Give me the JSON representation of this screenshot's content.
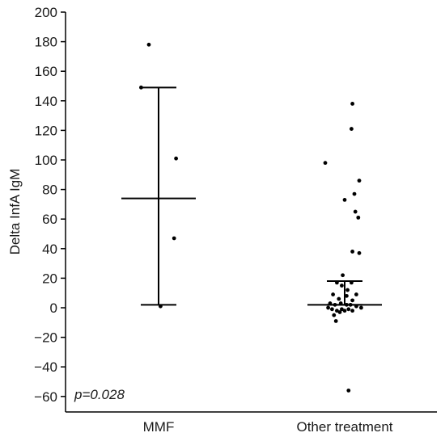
{
  "chart_data": {
    "type": "scatter",
    "ylabel": "Delta InfA IgM",
    "ylim": [
      -70,
      200
    ],
    "yticks": [
      200,
      180,
      160,
      140,
      120,
      100,
      80,
      60,
      40,
      20,
      0,
      -20,
      -40,
      -60
    ],
    "ytick_labels": [
      "200",
      "180",
      "160",
      "140",
      "120",
      "100",
      "80",
      "60",
      "40",
      "20",
      "0",
      "−20",
      "−40",
      "−60"
    ],
    "categories": [
      "MMF",
      "Other treatment"
    ],
    "annotation": "p=0.028",
    "grid": false,
    "colors": {
      "points": "#000000",
      "axes": "#000000"
    },
    "groups": [
      {
        "category": "MMF",
        "mean": 74,
        "upper": 149,
        "lower": 2,
        "points": [
          {
            "jitter": -0.1,
            "y": 178
          },
          {
            "jitter": -0.18,
            "y": 149
          },
          {
            "jitter": 0.18,
            "y": 101
          },
          {
            "jitter": 0.16,
            "y": 47
          },
          {
            "jitter": 0.02,
            "y": 1
          }
        ]
      },
      {
        "category": "Other treatment",
        "mean": 2,
        "upper": 18,
        "lower": 2,
        "points": [
          {
            "jitter": 0.08,
            "y": 138
          },
          {
            "jitter": 0.07,
            "y": 121
          },
          {
            "jitter": -0.2,
            "y": 98
          },
          {
            "jitter": 0.15,
            "y": 86
          },
          {
            "jitter": 0.1,
            "y": 77
          },
          {
            "jitter": 0.0,
            "y": 73
          },
          {
            "jitter": 0.11,
            "y": 65
          },
          {
            "jitter": 0.14,
            "y": 61
          },
          {
            "jitter": 0.08,
            "y": 38
          },
          {
            "jitter": 0.15,
            "y": 37
          },
          {
            "jitter": -0.02,
            "y": 22
          },
          {
            "jitter": -0.08,
            "y": 17
          },
          {
            "jitter": 0.07,
            "y": 17
          },
          {
            "jitter": -0.03,
            "y": 15
          },
          {
            "jitter": 0.03,
            "y": 12
          },
          {
            "jitter": -0.12,
            "y": 9
          },
          {
            "jitter": 0.12,
            "y": 9
          },
          {
            "jitter": 0.02,
            "y": 8
          },
          {
            "jitter": -0.06,
            "y": 6
          },
          {
            "jitter": 0.08,
            "y": 5
          },
          {
            "jitter": -0.15,
            "y": 3
          },
          {
            "jitter": -0.1,
            "y": 2
          },
          {
            "jitter": -0.04,
            "y": 3
          },
          {
            "jitter": 0.02,
            "y": 2
          },
          {
            "jitter": 0.06,
            "y": 2
          },
          {
            "jitter": 0.12,
            "y": 1
          },
          {
            "jitter": 0.17,
            "y": 0
          },
          {
            "jitter": -0.17,
            "y": 0
          },
          {
            "jitter": -0.13,
            "y": -1
          },
          {
            "jitter": -0.08,
            "y": -2
          },
          {
            "jitter": -0.03,
            "y": -1
          },
          {
            "jitter": 0.0,
            "y": -2
          },
          {
            "jitter": 0.04,
            "y": -1
          },
          {
            "jitter": -0.11,
            "y": -5
          },
          {
            "jitter": -0.05,
            "y": -3
          },
          {
            "jitter": 0.08,
            "y": -2
          },
          {
            "jitter": -0.09,
            "y": -9
          },
          {
            "jitter": 0.04,
            "y": -56
          }
        ]
      }
    ]
  }
}
